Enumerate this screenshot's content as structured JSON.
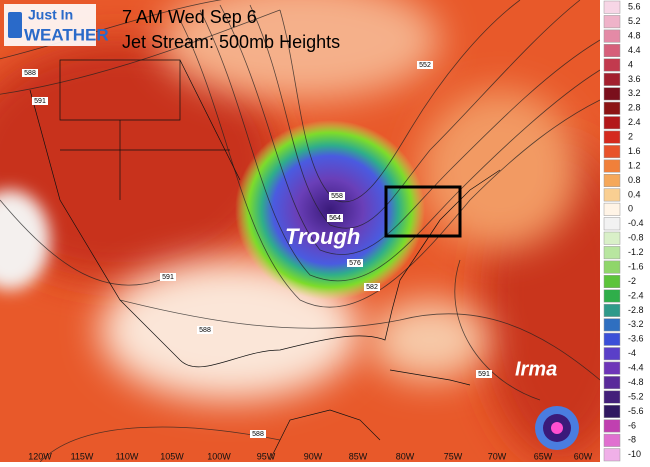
{
  "header": {
    "logo_top": "Just In",
    "logo_bottom": "WEATHER",
    "title": "7 AM Wed Sep 6",
    "subtitle": "Jet Stream: 500mb Heights"
  },
  "annotations": {
    "trough": "Trough",
    "storm": "Irma"
  },
  "contour_labels": [
    "588",
    "591",
    "552",
    "558",
    "564",
    "576",
    "582",
    "591",
    "588",
    "591",
    "588"
  ],
  "longitudes": [
    "120W",
    "115W",
    "110W",
    "105W",
    "100W",
    "95W",
    "90W",
    "85W",
    "80W",
    "75W",
    "70W",
    "65W",
    "60W"
  ],
  "colorbar": {
    "labels": [
      "5.6",
      "5.2",
      "4.8",
      "4.4",
      "4",
      "3.6",
      "3.2",
      "2.8",
      "2.4",
      "2",
      "1.6",
      "1.2",
      "0.8",
      "0.4",
      "0",
      "-0.4",
      "-0.8",
      "-1.2",
      "-1.6",
      "-2",
      "-2.4",
      "-2.8",
      "-3.2",
      "-3.6",
      "-4",
      "-4.4",
      "-4.8",
      "-5.2",
      "-5.6",
      "-6",
      "-8",
      "-10"
    ]
  }
}
